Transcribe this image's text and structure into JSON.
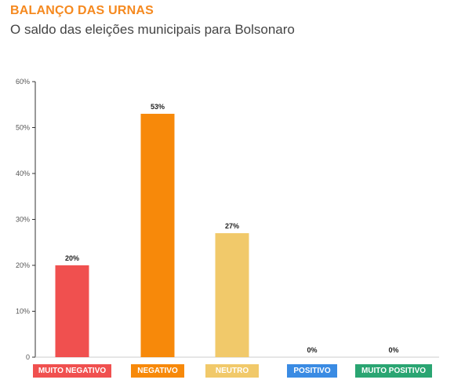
{
  "header": {
    "kicker": "BALANÇO DAS URNAS",
    "headline": "O saldo das eleições municipais para Bolsonaro"
  },
  "colors": {
    "kicker": "#f5891f",
    "muito_negativo": "#f0504f",
    "negativo": "#f7890a",
    "neutro": "#f1c96a",
    "positivo": "#3a8be3",
    "muito_positivo": "#2aa572"
  },
  "chart_data": {
    "type": "bar",
    "categories": [
      "MUITO NEGATIVO",
      "NEGATIVO",
      "NEUTRO",
      "POSITIVO",
      "MUITO POSITIVO"
    ],
    "values": [
      20,
      53,
      27,
      0,
      0
    ],
    "data_labels": [
      "20%",
      "53%",
      "27%",
      "0%",
      "0%"
    ],
    "bar_colors": [
      "#f0504f",
      "#f7890a",
      "#f1c96a",
      "#3a8be3",
      "#2aa572"
    ],
    "ylim": [
      0,
      60
    ],
    "yticks": [
      0,
      10,
      20,
      30,
      40,
      50,
      60
    ],
    "ytick_labels": [
      "0",
      "10%",
      "20%",
      "30%",
      "40%",
      "50%",
      "60%"
    ],
    "xlabel": "",
    "ylabel": "",
    "grid": false,
    "legend": "none"
  }
}
